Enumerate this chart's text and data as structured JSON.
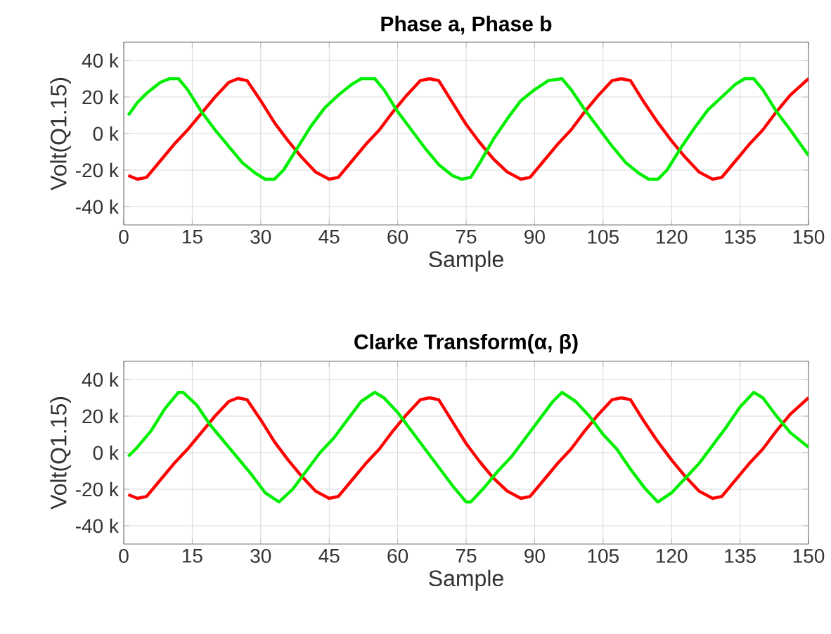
{
  "chart_data": [
    {
      "type": "line",
      "title": "Phase a, Phase b",
      "xlabel": "Sample",
      "ylabel": "Volt(Q1.15)",
      "xlim": [
        0,
        150
      ],
      "ylim": [
        -50000,
        50000
      ],
      "xticks": [
        0,
        15,
        30,
        45,
        60,
        75,
        90,
        105,
        120,
        135,
        150
      ],
      "yticks": [
        {
          "value": -40000,
          "label": "-40 k"
        },
        {
          "value": -20000,
          "label": "-20 k"
        },
        {
          "value": 0,
          "label": "0 k"
        },
        {
          "value": 20000,
          "label": "20 k"
        },
        {
          "value": 40000,
          "label": "40 k"
        }
      ],
      "grid": true,
      "series": [
        {
          "color": "#ff0000",
          "x": [
            1,
            3,
            5,
            8,
            11,
            14,
            17,
            20,
            23,
            25,
            27,
            30,
            33,
            36,
            39,
            42,
            45,
            47,
            50,
            53,
            56,
            59,
            62,
            65,
            67,
            69,
            72,
            75,
            78,
            81,
            84,
            87,
            89,
            92,
            95,
            98,
            101,
            104,
            107,
            109,
            111,
            114,
            117,
            120,
            123,
            126,
            129,
            131,
            134,
            137,
            140,
            143,
            146,
            150
          ],
          "values": [
            -23000,
            -25000,
            -24000,
            -15000,
            -6000,
            2000,
            11000,
            20000,
            28000,
            30000,
            29000,
            18000,
            6000,
            -4000,
            -13000,
            -21000,
            -25000,
            -24000,
            -15000,
            -6000,
            2000,
            12000,
            21000,
            29000,
            30000,
            29000,
            17000,
            5000,
            -5000,
            -14000,
            -21000,
            -25000,
            -24000,
            -15000,
            -6000,
            2000,
            12000,
            21000,
            29000,
            30000,
            29000,
            17000,
            6000,
            -4000,
            -13000,
            -21000,
            -25000,
            -24000,
            -15000,
            -6000,
            2000,
            12000,
            21000,
            30000
          ]
        },
        {
          "color": "#00ee00",
          "x": [
            1,
            3,
            5,
            8,
            10,
            12,
            14,
            17,
            20,
            23,
            26,
            29,
            31,
            33,
            35,
            38,
            41,
            44,
            47,
            50,
            52,
            55,
            57,
            60,
            63,
            66,
            69,
            72,
            74,
            76,
            78,
            81,
            84,
            87,
            90,
            93,
            96,
            98,
            101,
            104,
            107,
            110,
            113,
            115,
            117,
            119,
            122,
            125,
            128,
            131,
            134,
            136,
            138,
            140,
            143,
            146,
            150
          ],
          "values": [
            10000,
            17000,
            22000,
            28000,
            30000,
            30000,
            24000,
            12000,
            2000,
            -7000,
            -16000,
            -22000,
            -25000,
            -25000,
            -20000,
            -8000,
            4000,
            14000,
            21000,
            27000,
            30000,
            30000,
            24000,
            12000,
            2000,
            -8000,
            -17000,
            -23000,
            -25000,
            -24000,
            -16000,
            -3000,
            8000,
            18000,
            24000,
            29000,
            30000,
            24000,
            13000,
            3000,
            -7000,
            -16000,
            -22000,
            -25000,
            -25000,
            -20000,
            -8000,
            3000,
            13000,
            20000,
            27000,
            30000,
            30000,
            24000,
            12000,
            2000,
            -12000
          ]
        }
      ]
    },
    {
      "type": "line",
      "title": "Clarke Transform(α, β)",
      "xlabel": "Sample",
      "ylabel": "Volt(Q1.15)",
      "xlim": [
        0,
        150
      ],
      "ylim": [
        -50000,
        50000
      ],
      "xticks": [
        0,
        15,
        30,
        45,
        60,
        75,
        90,
        105,
        120,
        135,
        150
      ],
      "yticks": [
        {
          "value": -40000,
          "label": "-40 k"
        },
        {
          "value": -20000,
          "label": "-20 k"
        },
        {
          "value": 0,
          "label": "0 k"
        },
        {
          "value": 20000,
          "label": "20 k"
        },
        {
          "value": 40000,
          "label": "40 k"
        }
      ],
      "grid": true,
      "series": [
        {
          "color": "#ff0000",
          "x": [
            1,
            3,
            5,
            8,
            11,
            14,
            17,
            20,
            23,
            25,
            27,
            30,
            33,
            36,
            39,
            42,
            45,
            47,
            50,
            53,
            56,
            59,
            62,
            65,
            67,
            69,
            72,
            75,
            78,
            81,
            84,
            87,
            89,
            92,
            95,
            98,
            101,
            104,
            107,
            109,
            111,
            114,
            117,
            120,
            123,
            126,
            129,
            131,
            134,
            137,
            140,
            143,
            146,
            150
          ],
          "values": [
            -23000,
            -25000,
            -24000,
            -15000,
            -6000,
            2000,
            11000,
            20000,
            28000,
            30000,
            29000,
            18000,
            6000,
            -4000,
            -13000,
            -21000,
            -25000,
            -24000,
            -15000,
            -6000,
            2000,
            12000,
            21000,
            29000,
            30000,
            29000,
            17000,
            5000,
            -5000,
            -14000,
            -21000,
            -25000,
            -24000,
            -15000,
            -6000,
            2000,
            12000,
            21000,
            29000,
            30000,
            29000,
            17000,
            6000,
            -4000,
            -13000,
            -21000,
            -25000,
            -24000,
            -15000,
            -6000,
            2000,
            12000,
            21000,
            30000
          ]
        },
        {
          "color": "#00ee00",
          "x": [
            1,
            3,
            6,
            9,
            12,
            13,
            16,
            19,
            22,
            25,
            28,
            31,
            34,
            37,
            40,
            43,
            46,
            49,
            52,
            55,
            57,
            60,
            63,
            66,
            69,
            72,
            75,
            76,
            79,
            82,
            85,
            88,
            91,
            94,
            96,
            99,
            102,
            105,
            108,
            111,
            114,
            117,
            120,
            123,
            126,
            129,
            132,
            135,
            138,
            140,
            143,
            146,
            150
          ],
          "values": [
            -2000,
            3000,
            12000,
            24000,
            33000,
            33000,
            26000,
            15000,
            6000,
            -3000,
            -12000,
            -22000,
            -27000,
            -20000,
            -10000,
            0,
            8000,
            18000,
            28000,
            33000,
            30000,
            22000,
            12000,
            2000,
            -8000,
            -18000,
            -27000,
            -27000,
            -19000,
            -10000,
            -2000,
            8000,
            18000,
            28000,
            33000,
            28000,
            20000,
            10000,
            2000,
            -9000,
            -19000,
            -27000,
            -22000,
            -14000,
            -6000,
            4000,
            14000,
            25000,
            33000,
            30000,
            20000,
            11000,
            3000
          ]
        }
      ]
    }
  ]
}
